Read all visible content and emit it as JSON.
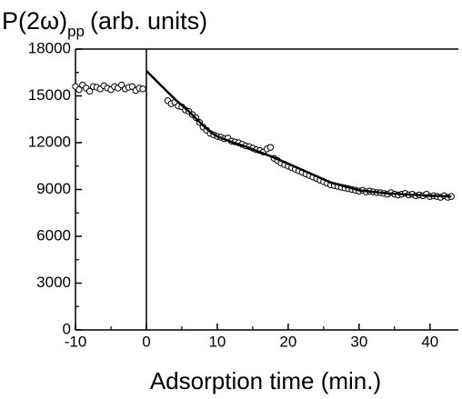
{
  "chart_data": {
    "type": "scatter",
    "title": {
      "main": "P(2ω)",
      "subscript": "pp",
      "rest": "(arb. units)"
    },
    "x_label": "Adsorption time (min.)",
    "xlim": [
      -10,
      44
    ],
    "ylim": [
      0,
      18000
    ],
    "xticks": [
      -10,
      0,
      10,
      20,
      30,
      40
    ],
    "yticks": [
      0,
      3000,
      6000,
      9000,
      12000,
      15000,
      18000
    ],
    "xticks_minor": [
      -5,
      5,
      15,
      25,
      35
    ],
    "yticks_minor": [
      1500,
      4500,
      7500,
      10500,
      13500,
      16500
    ],
    "vline": 0,
    "color": "#000000",
    "series": [
      {
        "style": "points",
        "x": [
          -10,
          -9.5,
          -9,
          -8.5,
          -8,
          -7.5,
          -7,
          -6.5,
          -6,
          -5.5,
          -5,
          -4.5,
          -4,
          -3.5,
          -3,
          -2.5,
          -2,
          -1.5,
          -1,
          -0.5
        ],
        "values": [
          15600,
          15400,
          15700,
          15500,
          15300,
          15600,
          15550,
          15450,
          15650,
          15500,
          15400,
          15600,
          15500,
          15700,
          15450,
          15550,
          15600,
          15350,
          15500,
          15450
        ]
      },
      {
        "style": "points",
        "x": [
          3,
          3.5,
          4,
          4.5,
          5,
          5.5,
          6,
          6.5,
          7,
          7.5,
          8,
          8.5,
          9,
          9.5,
          10,
          10.5,
          11,
          11.5,
          12,
          12.5,
          13,
          13.5,
          14,
          14.5,
          15,
          15.5,
          16,
          16.5,
          17,
          17.5,
          18,
          18.5,
          19,
          19.5,
          20,
          20.5,
          21,
          21.5,
          22,
          22.5,
          23,
          23.5,
          24,
          24.5,
          25,
          25.5,
          26,
          26.5,
          27,
          27.5,
          28,
          28.5,
          29,
          29.5,
          30,
          30.5,
          31,
          31.5,
          32,
          32.5,
          33,
          33.5,
          34,
          34.5,
          35,
          35.5,
          36,
          36.5,
          37,
          37.5,
          38,
          38.5,
          39,
          39.5,
          40,
          40.5,
          41,
          41.5,
          42,
          42.5,
          43
        ],
        "values": [
          14700,
          14500,
          14600,
          14350,
          14300,
          14100,
          14000,
          13800,
          13600,
          13300,
          13000,
          12800,
          12600,
          12500,
          12400,
          12350,
          12250,
          12300,
          12100,
          12050,
          12000,
          11900,
          11800,
          11750,
          11650,
          11550,
          11500,
          11400,
          11600,
          11700,
          11000,
          10850,
          10700,
          10600,
          10500,
          10400,
          10300,
          10200,
          10100,
          10000,
          9900,
          9800,
          9700,
          9600,
          9500,
          9400,
          9300,
          9250,
          9200,
          9150,
          9100,
          9050,
          9000,
          8950,
          8900,
          8950,
          8850,
          8900,
          8850,
          8800,
          8800,
          8750,
          8700,
          8800,
          8700,
          8650,
          8700,
          8750,
          8650,
          8700,
          8600,
          8650,
          8600,
          8700,
          8550,
          8600,
          8550,
          8500,
          8600,
          8500,
          8550
        ]
      },
      {
        "style": "line",
        "x": [
          0,
          1,
          2,
          3,
          4,
          5,
          6,
          7,
          8,
          9,
          10,
          12,
          14,
          16,
          18,
          20,
          22,
          24,
          26,
          28,
          30,
          32,
          34,
          36,
          38,
          40,
          43
        ],
        "values": [
          16600,
          16150,
          15700,
          15250,
          14800,
          14400,
          14000,
          13550,
          13100,
          12700,
          12400,
          12050,
          11750,
          11400,
          11050,
          10650,
          10250,
          9850,
          9450,
          9200,
          8950,
          8850,
          8750,
          8700,
          8650,
          8600,
          8550
        ]
      }
    ]
  }
}
